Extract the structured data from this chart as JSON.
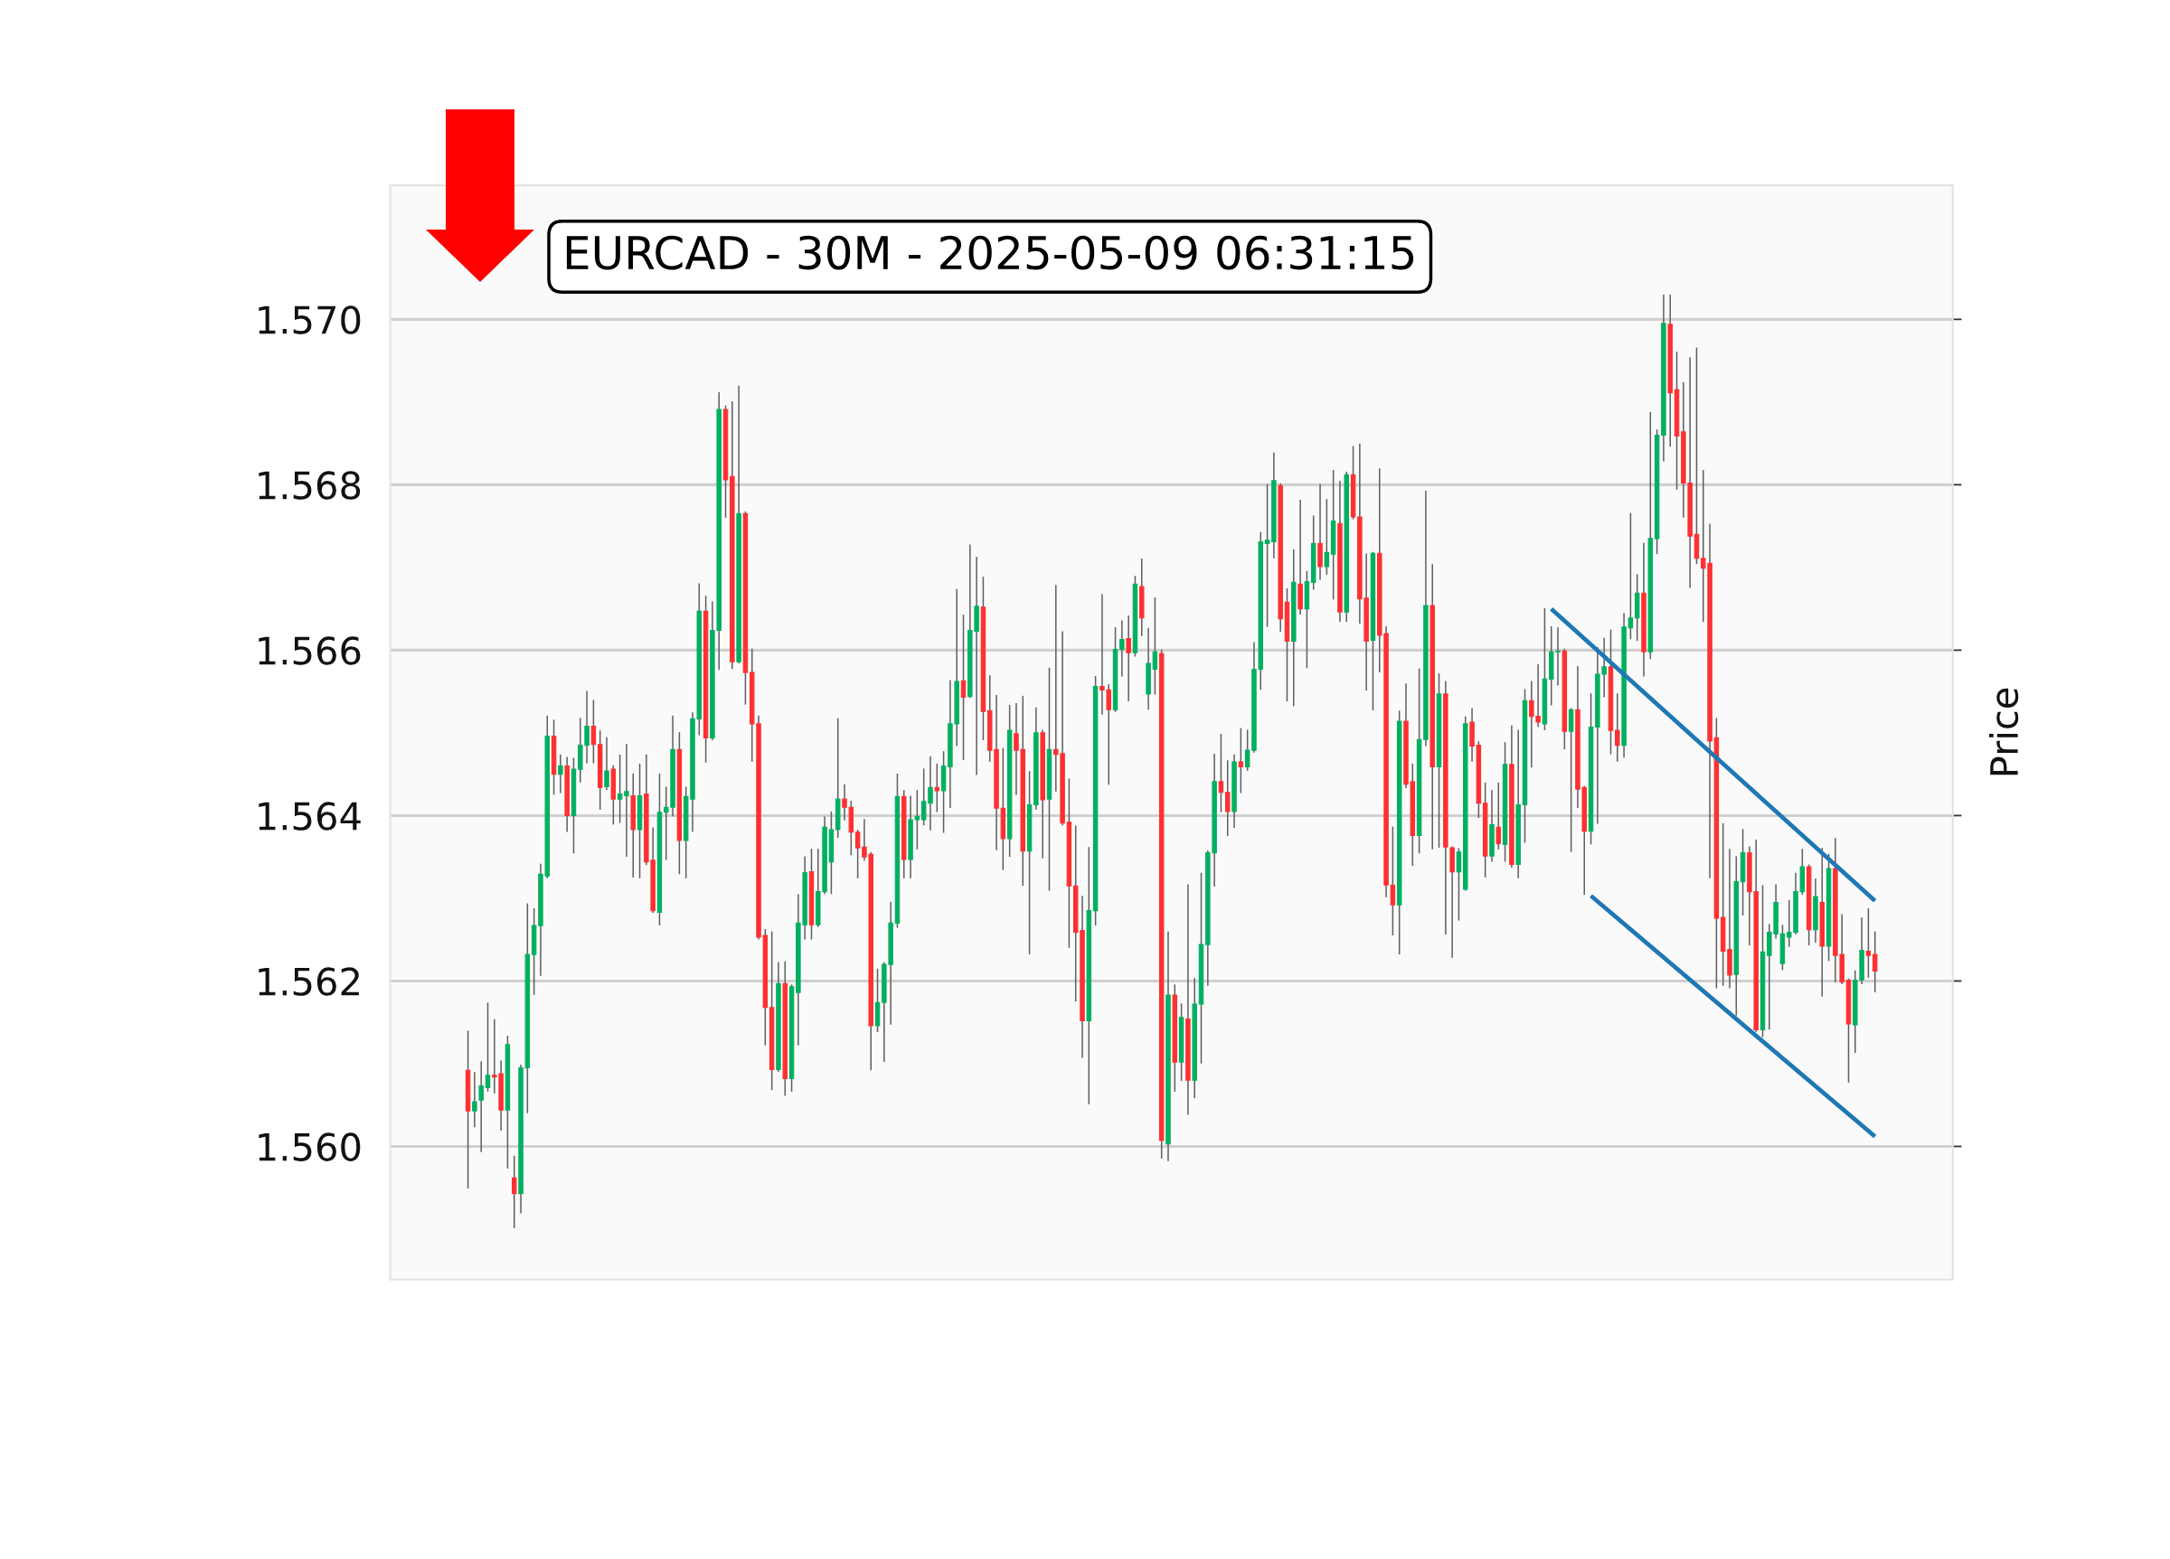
{
  "chart_data": {
    "type": "candlestick",
    "title": "EURCAD - 30M - 2025-05-09 06:31:15",
    "ylabel": "Price",
    "categories": [
      null,
      null,
      null,
      null,
      null,
      null,
      null,
      null,
      null,
      null,
      null,
      null,
      null,
      null,
      null,
      null,
      null,
      null,
      null,
      null,
      null,
      null,
      null,
      null,
      null,
      null,
      null,
      null,
      null,
      null,
      null,
      null,
      null,
      null,
      null,
      null,
      null,
      null,
      null,
      null,
      null,
      null,
      null,
      null,
      null,
      null,
      null,
      null,
      null,
      null,
      null,
      null,
      null,
      null,
      null,
      null,
      null,
      null,
      null,
      null,
      null,
      null,
      null,
      null,
      null,
      null,
      null,
      null,
      null,
      null,
      null,
      null,
      null,
      null,
      null,
      null,
      null,
      null,
      null,
      null,
      null,
      null,
      null,
      null,
      null,
      null,
      null,
      null,
      null,
      null,
      null,
      null,
      null,
      null,
      null,
      null,
      null,
      null,
      null,
      null,
      null,
      null,
      null,
      null,
      null,
      null,
      null,
      null,
      null,
      null,
      null,
      null,
      null,
      null,
      null,
      null,
      null,
      null,
      null,
      null,
      null,
      null,
      null,
      null,
      null,
      null,
      null,
      null,
      null,
      null,
      null,
      null,
      null,
      null,
      null,
      null,
      null,
      null,
      null,
      null,
      null,
      null,
      null,
      null,
      null,
      null,
      null,
      null,
      null,
      null,
      null,
      null,
      null,
      null,
      null,
      null,
      null,
      null,
      null,
      null,
      null,
      null,
      null,
      null,
      null,
      null,
      null,
      null,
      null,
      null,
      null,
      null,
      null,
      null,
      null,
      null,
      null,
      null,
      null,
      null,
      null,
      null,
      null,
      null,
      null,
      null,
      null,
      null,
      null,
      null,
      null,
      null,
      null,
      null,
      null,
      null,
      null,
      null,
      null,
      null,
      null,
      null,
      null,
      null,
      null,
      null,
      null,
      null,
      null,
      null,
      null,
      null,
      null,
      null
    ],
    "series": [
      {
        "ohlc": [
          [
            1.56092,
            1.56139,
            1.5595,
            1.56043
          ],
          [
            1.56043,
            1.56089,
            1.56024,
            1.56054
          ],
          [
            1.56056,
            1.56102,
            1.55994,
            1.56073
          ],
          [
            1.56071,
            1.56173,
            1.56067,
            1.56086
          ],
          [
            1.56086,
            1.56153,
            1.56065,
            1.56084
          ],
          [
            1.56088,
            1.56103,
            1.5602,
            1.56044
          ],
          [
            1.56044,
            1.56133,
            1.55974,
            1.56123
          ],
          [
            1.55962,
            1.55988,
            1.55902,
            1.55943
          ],
          [
            1.55943,
            1.56098,
            1.5592,
            1.56095
          ],
          [
            1.56095,
            1.56293,
            1.56041,
            1.56232
          ],
          [
            1.56232,
            1.56287,
            1.56184,
            1.56267
          ],
          [
            1.56267,
            1.56341,
            1.56207,
            1.56329
          ],
          [
            1.56327,
            1.5652,
            1.56325,
            1.56496
          ],
          [
            1.56496,
            1.56515,
            1.56426,
            1.5645
          ],
          [
            1.5645,
            1.56473,
            1.56428,
            1.5646
          ],
          [
            1.5646,
            1.5647,
            1.56381,
            1.564
          ],
          [
            1.564,
            1.56469,
            1.56355,
            1.56456
          ],
          [
            1.56456,
            1.56517,
            1.56441,
            1.56485
          ],
          [
            1.56485,
            1.5655,
            1.56464,
            1.56508
          ],
          [
            1.56508,
            1.56539,
            1.56464,
            1.56486
          ],
          [
            1.56486,
            1.56502,
            1.56408,
            1.56434
          ],
          [
            1.56435,
            1.56494,
            1.56432,
            1.56454
          ],
          [
            1.56456,
            1.5646,
            1.5639,
            1.5642
          ],
          [
            1.5642,
            1.56473,
            1.56392,
            1.56426
          ],
          [
            1.56424,
            1.56486,
            1.56351,
            1.56429
          ],
          [
            1.56424,
            1.5645,
            1.56326,
            1.56383
          ],
          [
            1.56383,
            1.56462,
            1.56325,
            1.56424
          ],
          [
            1.56426,
            1.56473,
            1.56341,
            1.56344
          ],
          [
            1.56346,
            1.56385,
            1.56283,
            1.56285
          ],
          [
            1.56283,
            1.5645,
            1.56268,
            1.56404
          ],
          [
            1.56404,
            1.56434,
            1.56347,
            1.5641
          ],
          [
            1.5641,
            1.5652,
            1.564,
            1.5648
          ],
          [
            1.5648,
            1.565,
            1.5633,
            1.5637
          ],
          [
            1.5637,
            1.56434,
            1.56325,
            1.56423
          ],
          [
            1.5642,
            1.56524,
            1.56381,
            1.56517
          ],
          [
            1.56517,
            1.5668,
            1.56498,
            1.56647
          ],
          [
            1.56647,
            1.56665,
            1.56465,
            1.56494
          ],
          [
            1.56494,
            1.56658,
            1.56492,
            1.56624
          ],
          [
            1.56624,
            1.56911,
            1.56577,
            1.56891
          ],
          [
            1.56891,
            1.56895,
            1.56761,
            1.56806
          ],
          [
            1.5681,
            1.569,
            1.56578,
            1.56586
          ],
          [
            1.56586,
            1.56919,
            1.56585,
            1.56765
          ],
          [
            1.56765,
            1.56767,
            1.56535,
            1.56573
          ],
          [
            1.56573,
            1.56601,
            1.56466,
            1.56511
          ],
          [
            1.56511,
            1.5652,
            1.56251,
            1.56253
          ],
          [
            1.56255,
            1.56262,
            1.56123,
            1.56168
          ],
          [
            1.56168,
            1.56259,
            1.56069,
            1.56093
          ],
          [
            1.56093,
            1.56222,
            1.56091,
            1.56197
          ],
          [
            1.56197,
            1.56223,
            1.56062,
            1.56082
          ],
          [
            1.56082,
            1.56195,
            1.56067,
            1.56193
          ],
          [
            1.56186,
            1.56304,
            1.56123,
            1.5627
          ],
          [
            1.56268,
            1.5635,
            1.56251,
            1.56331
          ],
          [
            1.56332,
            1.56359,
            1.56251,
            1.56268
          ],
          [
            1.56268,
            1.56359,
            1.56266,
            1.56308
          ],
          [
            1.56308,
            1.56398,
            1.56306,
            1.56386
          ],
          [
            1.56344,
            1.56404,
            1.56306,
            1.56383
          ],
          [
            1.56383,
            1.56517,
            1.56374,
            1.5642
          ],
          [
            1.5642,
            1.56437,
            1.56395,
            1.5641
          ],
          [
            1.5641,
            1.56417,
            1.56353,
            1.5638
          ],
          [
            1.5638,
            1.56382,
            1.56325,
            1.56361
          ],
          [
            1.56362,
            1.56395,
            1.56346,
            1.5635
          ],
          [
            1.56353,
            1.56355,
            1.56093,
            1.56146
          ],
          [
            1.56146,
            1.56214,
            1.56139,
            1.56174
          ],
          [
            1.56174,
            1.56222,
            1.56103,
            1.5622
          ],
          [
            1.5622,
            1.56295,
            1.56148,
            1.5627
          ],
          [
            1.5627,
            1.5645,
            1.56265,
            1.56423
          ],
          [
            1.56423,
            1.5643,
            1.56325,
            1.56347
          ],
          [
            1.56347,
            1.56423,
            1.56325,
            1.56395
          ],
          [
            1.56395,
            1.5643,
            1.5636,
            1.56399
          ],
          [
            1.56395,
            1.56456,
            1.56389,
            1.56417
          ],
          [
            1.56415,
            1.56471,
            1.56383,
            1.56434
          ],
          [
            1.56434,
            1.56462,
            1.56405,
            1.5643
          ],
          [
            1.5643,
            1.56477,
            1.5638,
            1.5646
          ],
          [
            1.56459,
            1.56563,
            1.5641,
            1.56511
          ],
          [
            1.56511,
            1.56673,
            1.56485,
            1.56562
          ],
          [
            1.56563,
            1.56642,
            1.56468,
            1.56543
          ],
          [
            1.56544,
            1.56727,
            1.56543,
            1.56624
          ],
          [
            1.56623,
            1.56712,
            1.5645,
            1.56653
          ],
          [
            1.56652,
            1.56688,
            1.56492,
            1.56526
          ],
          [
            1.56527,
            1.56569,
            1.56466,
            1.56479
          ],
          [
            1.5648,
            1.56545,
            1.56359,
            1.56409
          ],
          [
            1.56409,
            1.56481,
            1.56335,
            1.56372
          ],
          [
            1.56372,
            1.56533,
            1.56351,
            1.56503
          ],
          [
            1.56499,
            1.56535,
            1.56426,
            1.56479
          ],
          [
            1.5648,
            1.56544,
            1.56316,
            1.56357
          ],
          [
            1.56357,
            1.56453,
            1.56233,
            1.56413
          ],
          [
            1.56413,
            1.5653,
            1.56408,
            1.565
          ],
          [
            1.565,
            1.56503,
            1.56349,
            1.56419
          ],
          [
            1.5642,
            1.56578,
            1.5631,
            1.5648
          ],
          [
            1.5648,
            1.56678,
            1.5643,
            1.56474
          ],
          [
            1.56475,
            1.56622,
            1.56389,
            1.56391
          ],
          [
            1.56392,
            1.56444,
            1.56241,
            1.56315
          ],
          [
            1.56315,
            1.56387,
            1.56176,
            1.56259
          ],
          [
            1.56261,
            1.56302,
            1.56108,
            1.56152
          ],
          [
            1.56152,
            1.56361,
            1.56052,
            1.56285
          ],
          [
            1.56285,
            1.56568,
            1.56268,
            1.56556
          ],
          [
            1.56556,
            1.56667,
            1.56523,
            1.56552
          ],
          [
            1.56552,
            1.56558,
            1.56438,
            1.56528
          ],
          [
            1.56528,
            1.56627,
            1.56526,
            1.56601
          ],
          [
            1.56601,
            1.56635,
            1.56569,
            1.56613
          ],
          [
            1.56614,
            1.56641,
            1.56539,
            1.56597
          ],
          [
            1.56597,
            1.56689,
            1.56593,
            1.5668
          ],
          [
            1.56677,
            1.5671,
            1.56618,
            1.56639
          ],
          [
            1.56547,
            1.56626,
            1.56529,
            1.56584
          ],
          [
            1.56577,
            1.56663,
            1.56547,
            1.56598
          ],
          [
            1.56596,
            1.566,
            1.55986,
            1.56007
          ],
          [
            1.56003,
            1.56259,
            1.55983,
            1.56183
          ],
          [
            1.56183,
            1.56195,
            1.56067,
            1.56102
          ],
          [
            1.56102,
            1.56172,
            1.5608,
            1.56156
          ],
          [
            1.56154,
            1.56316,
            1.56039,
            1.5608
          ],
          [
            1.5608,
            1.56203,
            1.56059,
            1.56172
          ],
          [
            1.56172,
            1.5633,
            1.56101,
            1.56244
          ],
          [
            1.56244,
            1.56357,
            1.56195,
            1.56355
          ],
          [
            1.56355,
            1.56474,
            1.56315,
            1.56441
          ],
          [
            1.56441,
            1.56498,
            1.56405,
            1.56428
          ],
          [
            1.56428,
            1.56466,
            1.56376,
            1.56405
          ],
          [
            1.56405,
            1.56473,
            1.56386,
            1.56465
          ],
          [
            1.56465,
            1.56505,
            1.56428,
            1.56459
          ],
          [
            1.56459,
            1.56503,
            1.56455,
            1.56479
          ],
          [
            1.56479,
            1.56609,
            1.56477,
            1.56577
          ],
          [
            1.56577,
            1.56742,
            1.56553,
            1.56731
          ],
          [
            1.56729,
            1.568,
            1.56629,
            1.56733
          ],
          [
            1.56731,
            1.56838,
            1.56712,
            1.56805
          ],
          [
            1.56799,
            1.56801,
            1.56623,
            1.56638
          ],
          [
            1.56658,
            1.56674,
            1.56539,
            1.56611
          ],
          [
            1.56611,
            1.56721,
            1.56533,
            1.56682
          ],
          [
            1.5668,
            1.56781,
            1.56644,
            1.5665
          ],
          [
            1.5665,
            1.56695,
            1.56579,
            1.56683
          ],
          [
            1.56682,
            1.56762,
            1.56674,
            1.56729
          ],
          [
            1.56729,
            1.568,
            1.56686,
            1.56701
          ],
          [
            1.56701,
            1.56782,
            1.56692,
            1.56718
          ],
          [
            1.56716,
            1.56817,
            1.56662,
            1.56756
          ],
          [
            1.56753,
            1.56804,
            1.56635,
            1.56646
          ],
          [
            1.56646,
            1.56815,
            1.56635,
            1.56812
          ],
          [
            1.56812,
            1.56846,
            1.56759,
            1.56761
          ],
          [
            1.56761,
            1.56849,
            1.56633,
            1.56662
          ],
          [
            1.56663,
            1.56716,
            1.56552,
            1.56611
          ],
          [
            1.56612,
            1.56718,
            1.56528,
            1.56717
          ],
          [
            1.56717,
            1.56819,
            1.56574,
            1.56618
          ],
          [
            1.5662,
            1.56628,
            1.56302,
            1.56316
          ],
          [
            1.56316,
            1.56386,
            1.56256,
            1.56292
          ],
          [
            1.56292,
            1.56526,
            1.56233,
            1.56514
          ],
          [
            1.56514,
            1.56559,
            1.56434,
            1.56438
          ],
          [
            1.56441,
            1.56462,
            1.5634,
            1.56376
          ],
          [
            1.56376,
            1.56577,
            1.56355,
            1.56492
          ],
          [
            1.56492,
            1.56792,
            1.56485,
            1.56654
          ],
          [
            1.56654,
            1.56703,
            1.5636,
            1.56459
          ],
          [
            1.56459,
            1.56571,
            1.56362,
            1.56547
          ],
          [
            1.56547,
            1.56562,
            1.56257,
            1.56362
          ],
          [
            1.56361,
            1.56362,
            1.56229,
            1.56332
          ],
          [
            1.56332,
            1.5636,
            1.56274,
            1.56356
          ],
          [
            1.56311,
            1.56519,
            1.5631,
            1.56511
          ],
          [
            1.56513,
            1.56529,
            1.56466,
            1.56484
          ],
          [
            1.56485,
            1.56489,
            1.56398,
            1.56415
          ],
          [
            1.56415,
            1.56439,
            1.56326,
            1.56351
          ],
          [
            1.56351,
            1.5643,
            1.56345,
            1.56389
          ],
          [
            1.56386,
            1.56439,
            1.5636,
            1.56366
          ],
          [
            1.56365,
            1.56488,
            1.56345,
            1.56462
          ],
          [
            1.56462,
            1.56508,
            1.56338,
            1.56341
          ],
          [
            1.56341,
            1.56503,
            1.56325,
            1.56413
          ],
          [
            1.56413,
            1.56552,
            1.56368,
            1.56539
          ],
          [
            1.56539,
            1.56562,
            1.56459,
            1.5652
          ],
          [
            1.5652,
            1.56582,
            1.56508,
            1.56513
          ],
          [
            1.56511,
            1.5665,
            1.56504,
            1.56565
          ],
          [
            1.56565,
            1.56628,
            1.56534,
            1.56598
          ],
          [
            1.56598,
            1.56627,
            1.56558,
            1.56599
          ],
          [
            1.56599,
            1.56601,
            1.56481,
            1.56502
          ],
          [
            1.56502,
            1.56529,
            1.56357,
            1.56528
          ],
          [
            1.56528,
            1.5658,
            1.5641,
            1.56432
          ],
          [
            1.56434,
            1.56435,
            1.56305,
            1.56381
          ],
          [
            1.56381,
            1.56547,
            1.56366,
            1.56507
          ],
          [
            1.56507,
            1.56603,
            1.56391,
            1.56571
          ],
          [
            1.56571,
            1.56614,
            1.56544,
            1.5658
          ],
          [
            1.5658,
            1.56624,
            1.56475,
            1.56503
          ],
          [
            1.56503,
            1.56547,
            1.56466,
            1.56485
          ],
          [
            1.56485,
            1.56644,
            1.56471,
            1.56628
          ],
          [
            1.56627,
            1.56765,
            1.56614,
            1.56639
          ],
          [
            1.56639,
            1.56691,
            1.56612,
            1.56669
          ],
          [
            1.56669,
            1.56729,
            1.56569,
            1.56598
          ],
          [
            1.56598,
            1.56887,
            1.5659,
            1.56735
          ],
          [
            1.56735,
            1.56866,
            1.56717,
            1.5686
          ],
          [
            1.5686,
            1.57029,
            1.56829,
            1.56995
          ],
          [
            1.56994,
            1.57029,
            1.56847,
            1.56911
          ],
          [
            1.56915,
            1.5696,
            1.56795,
            1.56859
          ],
          [
            1.56864,
            1.56923,
            1.56761,
            1.56802
          ],
          [
            1.56802,
            1.56953,
            1.56676,
            1.56738
          ],
          [
            1.5674,
            1.56965,
            1.56705,
            1.56711
          ],
          [
            1.56711,
            1.56817,
            1.56635,
            1.56699
          ],
          [
            1.56705,
            1.56752,
            1.56325,
            1.5649
          ],
          [
            1.56494,
            1.56517,
            1.56192,
            1.56276
          ],
          [
            1.56277,
            1.5639,
            1.56195,
            1.56236
          ],
          [
            1.56238,
            1.56359,
            1.56192,
            1.56207
          ],
          [
            1.56208,
            1.5635,
            1.56159,
            1.5632
          ],
          [
            1.5632,
            1.56383,
            1.5628,
            1.56355
          ],
          [
            1.56355,
            1.56362,
            1.56244,
            1.56308
          ],
          [
            1.56308,
            1.5637,
            1.56139,
            1.56141
          ],
          [
            1.56141,
            1.56315,
            1.56133,
            1.56235
          ],
          [
            1.56231,
            1.56268,
            1.56142,
            1.56259
          ],
          [
            1.56257,
            1.56316,
            1.56252,
            1.56295
          ],
          [
            1.56221,
            1.56267,
            1.56214,
            1.56257
          ],
          [
            1.56253,
            1.56297,
            1.56242,
            1.56259
          ],
          [
            1.56259,
            1.5633,
            1.56257,
            1.56308
          ],
          [
            1.56308,
            1.56359,
            1.56305,
            1.56338
          ],
          [
            1.56338,
            1.5634,
            1.56244,
            1.56262
          ],
          [
            1.56262,
            1.56323,
            1.56247,
            1.56302
          ],
          [
            1.56295,
            1.5636,
            1.56182,
            1.56242
          ],
          [
            1.56242,
            1.56353,
            1.56225,
            1.56336
          ],
          [
            1.56336,
            1.56372,
            1.56199,
            1.56231
          ],
          [
            1.56232,
            1.5628,
            1.56197,
            1.56199
          ],
          [
            1.56201,
            1.56202,
            1.56078,
            1.56148
          ],
          [
            1.56147,
            1.56212,
            1.56114,
            1.56201
          ],
          [
            1.56201,
            1.56276,
            1.56197,
            1.56237
          ],
          [
            1.56236,
            1.56287,
            1.56205,
            1.56231
          ],
          [
            1.56232,
            1.56259,
            1.56187,
            1.56212
          ]
        ],
        "colors": [
          "#fe3032",
          "#00b060",
          "#00b060",
          "#00b060",
          "#fe3032",
          "#fe3032",
          "#00b060",
          "#fe3032",
          "#00b060",
          "#00b060",
          "#00b060",
          "#00b060",
          "#00b060",
          "#fe3032",
          "#00b060",
          "#fe3032",
          "#00b060",
          "#00b060",
          "#00b060",
          "#fe3032",
          "#fe3032",
          "#00b060",
          "#fe3032",
          "#00b060",
          "#00b060",
          "#fe3032",
          "#00b060",
          "#fe3032",
          "#fe3032",
          "#00b060",
          "#00b060",
          "#00b060",
          "#fe3032",
          "#00b060",
          "#00b060",
          "#00b060",
          "#fe3032",
          "#00b060",
          "#00b060",
          "#fe3032",
          "#fe3032",
          "#00b060",
          "#fe3032",
          "#fe3032",
          "#fe3032",
          "#fe3032",
          "#fe3032",
          "#00b060",
          "#fe3032",
          "#00b060",
          "#00b060",
          "#00b060",
          "#fe3032",
          "#00b060",
          "#00b060",
          "#00b060",
          "#00b060",
          "#fe3032",
          "#fe3032",
          "#fe3032",
          "#fe3032",
          "#fe3032",
          "#00b060",
          "#00b060",
          "#00b060",
          "#00b060",
          "#fe3032",
          "#00b060",
          "#00b060",
          "#00b060",
          "#00b060",
          "#fe3032",
          "#00b060",
          "#00b060",
          "#00b060",
          "#fe3032",
          "#00b060",
          "#00b060",
          "#fe3032",
          "#fe3032",
          "#fe3032",
          "#fe3032",
          "#00b060",
          "#fe3032",
          "#fe3032",
          "#00b060",
          "#00b060",
          "#fe3032",
          "#00b060",
          "#fe3032",
          "#fe3032",
          "#fe3032",
          "#fe3032",
          "#fe3032",
          "#00b060",
          "#00b060",
          "#fe3032",
          "#fe3032",
          "#00b060",
          "#00b060",
          "#fe3032",
          "#00b060",
          "#fe3032",
          "#00b060",
          "#00b060",
          "#fe3032",
          "#00b060",
          "#fe3032",
          "#00b060",
          "#fe3032",
          "#00b060",
          "#00b060",
          "#00b060",
          "#00b060",
          "#fe3032",
          "#fe3032",
          "#00b060",
          "#fe3032",
          "#00b060",
          "#00b060",
          "#00b060",
          "#00b060",
          "#00b060",
          "#fe3032",
          "#fe3032",
          "#00b060",
          "#fe3032",
          "#00b060",
          "#00b060",
          "#fe3032",
          "#00b060",
          "#00b060",
          "#fe3032",
          "#00b060",
          "#fe3032",
          "#fe3032",
          "#fe3032",
          "#00b060",
          "#fe3032",
          "#fe3032",
          "#fe3032",
          "#00b060",
          "#fe3032",
          "#fe3032",
          "#00b060",
          "#00b060",
          "#fe3032",
          "#00b060",
          "#fe3032",
          "#fe3032",
          "#00b060",
          "#00b060",
          "#fe3032",
          "#fe3032",
          "#fe3032",
          "#00b060",
          "#fe3032",
          "#00b060",
          "#fe3032",
          "#00b060",
          "#00b060",
          "#fe3032",
          "#fe3032",
          "#00b060",
          "#00b060",
          "#00b060",
          "#fe3032",
          "#00b060",
          "#fe3032",
          "#fe3032",
          "#00b060",
          "#00b060",
          "#00b060",
          "#fe3032",
          "#fe3032",
          "#00b060",
          "#00b060",
          "#00b060",
          "#fe3032",
          "#00b060",
          "#00b060",
          "#00b060",
          "#fe3032",
          "#fe3032",
          "#fe3032",
          "#fe3032",
          "#fe3032",
          "#fe3032",
          "#fe3032",
          "#fe3032",
          "#fe3032",
          "#fe3032",
          "#00b060",
          "#00b060",
          "#fe3032",
          "#fe3032",
          "#00b060",
          "#00b060",
          "#00b060",
          "#00b060",
          "#00b060",
          "#00b060",
          "#00b060",
          "#fe3032",
          "#00b060",
          "#fe3032",
          "#00b060",
          "#fe3032",
          "#fe3032",
          "#fe3032",
          "#00b060",
          "#00b060",
          "#fe3032",
          "#fe3032"
        ]
      },
      {
        "type": "line",
        "color": "#1f77b4",
        "values": [
          null,
          null,
          null,
          null,
          null,
          null,
          null,
          null,
          null,
          null,
          null,
          null,
          null,
          null,
          null,
          null,
          null,
          null,
          null,
          null,
          null,
          null,
          null,
          null,
          null,
          null,
          null,
          null,
          null,
          null,
          null,
          null,
          null,
          null,
          null,
          null,
          null,
          null,
          null,
          null,
          null,
          null,
          null,
          null,
          null,
          null,
          null,
          null,
          null,
          null,
          null,
          null,
          null,
          null,
          null,
          null,
          null,
          null,
          null,
          null,
          null,
          null,
          null,
          null,
          null,
          null,
          null,
          null,
          null,
          null,
          null,
          null,
          null,
          null,
          null,
          null,
          null,
          null,
          null,
          null,
          null,
          null,
          null,
          null,
          null,
          null,
          null,
          null,
          null,
          null,
          null,
          null,
          null,
          null,
          null,
          null,
          null,
          null,
          null,
          null,
          null,
          null,
          null,
          null,
          null,
          null,
          null,
          null,
          null,
          null,
          null,
          null,
          null,
          null,
          null,
          null,
          null,
          null,
          null,
          null,
          null,
          null,
          null,
          null,
          null,
          null,
          null,
          null,
          null,
          null,
          null,
          null,
          null,
          null,
          null,
          null,
          null,
          null,
          null,
          null,
          null,
          null,
          null,
          null,
          null,
          null,
          null,
          null,
          null,
          null,
          null,
          null,
          null,
          null,
          null,
          null,
          null,
          null,
          null,
          null,
          null,
          null,
          null,
          null,
          1.5665,
          null,
          null,
          null,
          null,
          null,
          null,
          null,
          null,
          null,
          null,
          null,
          null,
          null,
          null,
          null,
          null,
          null,
          null,
          null,
          null,
          null,
          null,
          null,
          null,
          null,
          null,
          null,
          null,
          null,
          null,
          null,
          null,
          null,
          null,
          null,
          null,
          null,
          null,
          null,
          null,
          null,
          null,
          null,
          null,
          null,
          null,
          null,
          null,
          1.56297
        ]
      },
      {
        "type": "line",
        "color": "#1f77b4",
        "values": [
          null,
          null,
          null,
          null,
          null,
          null,
          null,
          null,
          null,
          null,
          null,
          null,
          null,
          null,
          null,
          null,
          null,
          null,
          null,
          null,
          null,
          null,
          null,
          null,
          null,
          null,
          null,
          null,
          null,
          null,
          null,
          null,
          null,
          null,
          null,
          null,
          null,
          null,
          null,
          null,
          null,
          null,
          null,
          null,
          null,
          null,
          null,
          null,
          null,
          null,
          null,
          null,
          null,
          null,
          null,
          null,
          null,
          null,
          null,
          null,
          null,
          null,
          null,
          null,
          null,
          null,
          null,
          null,
          null,
          null,
          null,
          null,
          null,
          null,
          null,
          null,
          null,
          null,
          null,
          null,
          null,
          null,
          null,
          null,
          null,
          null,
          null,
          null,
          null,
          null,
          null,
          null,
          null,
          null,
          null,
          null,
          null,
          null,
          null,
          null,
          null,
          null,
          null,
          null,
          null,
          null,
          null,
          null,
          null,
          null,
          null,
          null,
          null,
          null,
          null,
          null,
          null,
          null,
          null,
          null,
          null,
          null,
          null,
          null,
          null,
          null,
          null,
          null,
          null,
          null,
          null,
          null,
          null,
          null,
          null,
          null,
          null,
          null,
          null,
          null,
          null,
          null,
          null,
          null,
          null,
          null,
          null,
          null,
          null,
          null,
          null,
          null,
          null,
          null,
          null,
          null,
          null,
          null,
          null,
          null,
          null,
          null,
          null,
          null,
          null,
          null,
          null,
          null,
          null,
          null,
          1.56303,
          null,
          null,
          null,
          null,
          null,
          null,
          null,
          null,
          null,
          null,
          null,
          null,
          null,
          null,
          null,
          null,
          null,
          null,
          null,
          null,
          null,
          null,
          null,
          null,
          null,
          null,
          null,
          null,
          null,
          null,
          null,
          null,
          null,
          null,
          null,
          null,
          null,
          null,
          null,
          null,
          null,
          null,
          1.56012
        ]
      }
    ],
    "ylim": [
      1.55839,
      1.57162
    ],
    "yticks": [
      {
        "value": 1.56,
        "label": "1.560"
      },
      {
        "value": 1.562,
        "label": "1.562"
      },
      {
        "value": 1.564,
        "label": "1.564"
      },
      {
        "value": 1.566,
        "label": "1.566"
      },
      {
        "value": 1.568,
        "label": "1.568"
      },
      {
        "value": 1.57,
        "label": "1.570"
      }
    ],
    "grid": "y",
    "tick_labels": "y"
  }
}
